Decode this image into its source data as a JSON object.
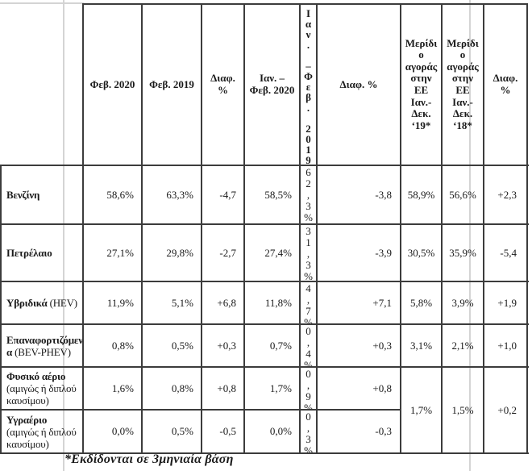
{
  "table": {
    "headers": {
      "feb2020": "Φεβ. 2020",
      "feb2019": "Φεβ. 2019",
      "diff_pct_2line": "Διαφ.\n%",
      "janfeb2020": "Ιαν. –\nΦεβ. 2020",
      "janfeb2019_stacked": "Ι\nα\nν\n.\n \n–\nΦ\nε\nβ\n.\n \n2\n0\n1\n9",
      "diff_pct": "Διαφ. %",
      "eu_share_19": "Μερίδι\nο\nαγοράς\nστην\nΕΕ\nΙαν.-\nΔεκ.\n‘19*",
      "eu_share_18": "Μερίδι\nο\nαγοράς\nστην\nΕΕ\nΙαν.-\nΔεκ.\n‘18*"
    },
    "rows": [
      {
        "label": [
          {
            "t": "Βενζίνη",
            "b": true
          }
        ],
        "feb2020": "58,6%",
        "feb2019": "63,3%",
        "diff1": "-4,7",
        "janfeb2020": "58,5%",
        "janfeb2019": "62,3%",
        "diff2": "-3,8",
        "eu19": "58,9%",
        "eu18": "56,6%",
        "diff3": "+2,3"
      },
      {
        "label": [
          {
            "t": "Πετρέλαιο",
            "b": true
          }
        ],
        "feb2020": "27,1%",
        "feb2019": "29,8%",
        "diff1": "-2,7",
        "janfeb2020": "27,4%",
        "janfeb2019": "31,3%",
        "diff2": "-3,9",
        "eu19": "30,5%",
        "eu18": "35,9%",
        "diff3": "-5,4"
      },
      {
        "label": [
          {
            "t": "Υβριδικά",
            "b": true
          },
          {
            "t": " (HEV)",
            "b": false
          }
        ],
        "feb2020": "11,9%",
        "feb2019": "5,1%",
        "diff1": "+6,8",
        "janfeb2020": "11,8%",
        "janfeb2019": "4,7%",
        "diff2": "+7,1",
        "eu19": "5,8%",
        "eu18": "3,9%",
        "diff3": "+1,9"
      },
      {
        "label": [
          {
            "t": "Επαναφορτιζόμεν\nα",
            "b": true
          },
          {
            "t": " (BEV-PHEV)",
            "b": false
          }
        ],
        "feb2020": "0,8%",
        "feb2019": "0,5%",
        "diff1": "+0,3",
        "janfeb2020": "0,7%",
        "janfeb2019": "0,4%",
        "diff2": "+0,3",
        "eu19": "3,1%",
        "eu18": "2,1%",
        "diff3": "+1,0"
      },
      {
        "label": [
          {
            "t": "Φυσικό αέριο",
            "b": true
          },
          {
            "t": "\n(αμιγώς ή διπλού\nκαυσίμου)",
            "b": false
          }
        ],
        "feb2020": "1,6%",
        "feb2019": "0,8%",
        "diff1": "+0,8",
        "janfeb2020": "1,7%",
        "janfeb2019": "0,9%",
        "diff2": "+0,8"
      },
      {
        "label": [
          {
            "t": "Υγραέριο",
            "b": true
          },
          {
            "t": "\n(αμιγώς ή διπλού\nκαυσίμου)",
            "b": false
          }
        ],
        "feb2020": "0,0%",
        "feb2019": "0,5%",
        "diff1": "-0,5",
        "janfeb2020": "0,0%",
        "janfeb2019": "0,3%",
        "diff2": "-0,3"
      }
    ],
    "merged": {
      "eu19": "1,7%",
      "eu18": "1,5%",
      "diff3": "+0,2"
    }
  },
  "footnote": "*Εκδίδονται σε 3μηνιαία βάση"
}
